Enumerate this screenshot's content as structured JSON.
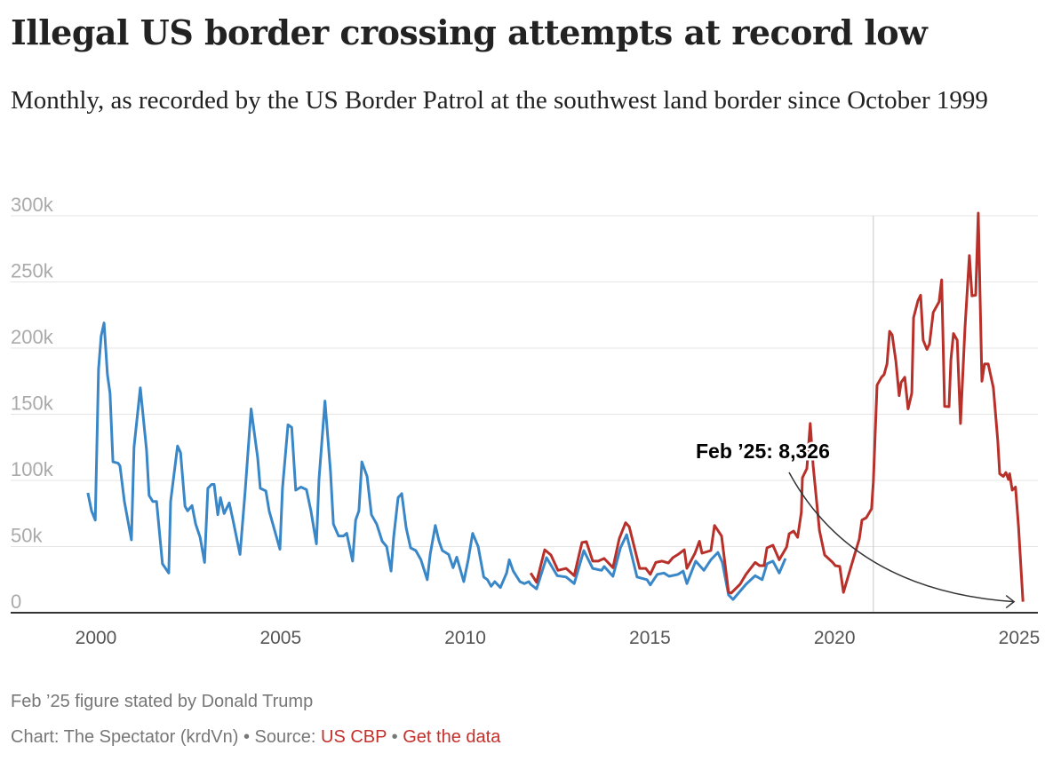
{
  "header": {
    "title": "Illegal US border crossing attempts at record low",
    "subtitle": "Monthly, as recorded by the US Border Patrol at the southwest land border since October 1999"
  },
  "footer": {
    "note": "Feb ’25 figure stated by Donald Trump",
    "credit": "Chart: The Spectator (krdVn)",
    "sep1": " • Source: ",
    "source_link": "US CBP",
    "sep2": " • ",
    "data_link": "Get the data"
  },
  "chart_data": {
    "type": "line",
    "title": "Illegal US border crossing attempts at record low",
    "xlabel": "",
    "ylabel": "",
    "xlim": [
      1999.75,
      2025.5
    ],
    "ylim": [
      0,
      300000
    ],
    "grid": true,
    "x_ticks": [
      "2000",
      "2005",
      "2010",
      "2015",
      "2020",
      "2025"
    ],
    "x_tick_values": [
      2000,
      2005,
      2010,
      2015,
      2020,
      2025
    ],
    "y_ticks": [
      "0",
      "50k",
      "100k",
      "150k",
      "200k",
      "250k",
      "300k"
    ],
    "y_tick_values": [
      0,
      50000,
      100000,
      150000,
      200000,
      250000,
      300000
    ],
    "reference_line_x": 2021.05,
    "colors": {
      "blue": "#3a87c8",
      "red": "#b8302a",
      "grid": "#e4e4e4",
      "axis": "#333333"
    },
    "annotation": {
      "text": "Feb ’25: 8,326",
      "points_to": [
        2025.1,
        8326
      ]
    },
    "series": [
      {
        "color": "#3a87c8",
        "points": [
          [
            1999.78,
            90600
          ],
          [
            1999.88,
            77000
          ],
          [
            1999.98,
            70000
          ],
          [
            2000.07,
            184000
          ],
          [
            2000.14,
            209000
          ],
          [
            2000.22,
            219000
          ],
          [
            2000.31,
            180000
          ],
          [
            2000.38,
            166000
          ],
          [
            2000.46,
            114000
          ],
          [
            2000.6,
            113000
          ],
          [
            2000.65,
            111000
          ],
          [
            2000.77,
            84000
          ],
          [
            2000.96,
            55000
          ],
          [
            2001.03,
            125000
          ],
          [
            2001.2,
            170000
          ],
          [
            2001.37,
            123000
          ],
          [
            2001.44,
            88600
          ],
          [
            2001.54,
            84000
          ],
          [
            2001.64,
            84000
          ],
          [
            2001.8,
            37000
          ],
          [
            2001.97,
            30000
          ],
          [
            2002.02,
            84000
          ],
          [
            2002.21,
            126000
          ],
          [
            2002.29,
            121000
          ],
          [
            2002.41,
            80500
          ],
          [
            2002.48,
            77000
          ],
          [
            2002.6,
            81000
          ],
          [
            2002.7,
            67000
          ],
          [
            2002.82,
            57000
          ],
          [
            2002.94,
            38000
          ],
          [
            2003.03,
            94000
          ],
          [
            2003.13,
            97000
          ],
          [
            2003.2,
            97000
          ],
          [
            2003.3,
            74000
          ],
          [
            2003.37,
            87000
          ],
          [
            2003.47,
            75000
          ],
          [
            2003.61,
            83000
          ],
          [
            2003.71,
            70000
          ],
          [
            2003.9,
            44000
          ],
          [
            2004.04,
            92000
          ],
          [
            2004.2,
            154000
          ],
          [
            2004.38,
            117000
          ],
          [
            2004.45,
            94000
          ],
          [
            2004.6,
            92000
          ],
          [
            2004.69,
            77000
          ],
          [
            2004.86,
            60000
          ],
          [
            2004.98,
            48000
          ],
          [
            2005.05,
            94000
          ],
          [
            2005.2,
            142000
          ],
          [
            2005.3,
            140000
          ],
          [
            2005.41,
            92600
          ],
          [
            2005.55,
            95000
          ],
          [
            2005.7,
            93000
          ],
          [
            2005.82,
            77000
          ],
          [
            2005.97,
            52000
          ],
          [
            2006.04,
            101000
          ],
          [
            2006.2,
            160000
          ],
          [
            2006.35,
            107000
          ],
          [
            2006.43,
            67000
          ],
          [
            2006.57,
            58000
          ],
          [
            2006.7,
            58000
          ],
          [
            2006.79,
            60000
          ],
          [
            2006.95,
            39000
          ],
          [
            2007.03,
            70000
          ],
          [
            2007.12,
            77000
          ],
          [
            2007.2,
            114000
          ],
          [
            2007.34,
            103000
          ],
          [
            2007.46,
            74000
          ],
          [
            2007.6,
            67000
          ],
          [
            2007.75,
            54000
          ],
          [
            2007.87,
            50000
          ],
          [
            2007.99,
            31500
          ],
          [
            2008.06,
            57000
          ],
          [
            2008.18,
            87000
          ],
          [
            2008.28,
            90000
          ],
          [
            2008.4,
            64000
          ],
          [
            2008.52,
            49000
          ],
          [
            2008.66,
            47000
          ],
          [
            2008.8,
            40000
          ],
          [
            2008.97,
            25000
          ],
          [
            2009.05,
            44000
          ],
          [
            2009.19,
            66000
          ],
          [
            2009.29,
            54000
          ],
          [
            2009.38,
            47000
          ],
          [
            2009.55,
            44000
          ],
          [
            2009.67,
            34000
          ],
          [
            2009.77,
            42000
          ],
          [
            2009.96,
            23500
          ],
          [
            2010.08,
            40000
          ],
          [
            2010.2,
            60000
          ],
          [
            2010.35,
            50000
          ],
          [
            2010.5,
            27000
          ],
          [
            2010.6,
            25000
          ],
          [
            2010.7,
            20000
          ],
          [
            2010.8,
            23500
          ],
          [
            2010.95,
            19000
          ],
          [
            2011.12,
            30000
          ],
          [
            2011.19,
            40000
          ],
          [
            2011.3,
            31500
          ],
          [
            2011.48,
            23500
          ],
          [
            2011.6,
            22000
          ],
          [
            2011.72,
            23500
          ],
          [
            2011.77,
            21500
          ],
          [
            2011.93,
            18000
          ],
          [
            2012.2,
            41600
          ],
          [
            2012.49,
            28000
          ],
          [
            2012.73,
            27000
          ],
          [
            2012.95,
            22000
          ],
          [
            2013.21,
            47000
          ],
          [
            2013.45,
            33500
          ],
          [
            2013.69,
            32000
          ],
          [
            2013.76,
            35000
          ],
          [
            2014.0,
            27500
          ],
          [
            2014.2,
            49000
          ],
          [
            2014.37,
            59000
          ],
          [
            2014.65,
            27000
          ],
          [
            2014.92,
            25000
          ],
          [
            2015.01,
            21000
          ],
          [
            2015.2,
            29000
          ],
          [
            2015.38,
            30000
          ],
          [
            2015.52,
            27500
          ],
          [
            2015.76,
            29000
          ],
          [
            2015.9,
            31500
          ],
          [
            2016.0,
            22000
          ],
          [
            2016.24,
            39000
          ],
          [
            2016.46,
            32000
          ],
          [
            2016.65,
            40000
          ],
          [
            2016.84,
            45600
          ],
          [
            2016.96,
            38000
          ],
          [
            2017.13,
            13400
          ],
          [
            2017.25,
            10000
          ],
          [
            2017.6,
            21500
          ],
          [
            2017.85,
            28000
          ],
          [
            2018.04,
            25000
          ],
          [
            2018.17,
            37000
          ],
          [
            2018.33,
            39000
          ],
          [
            2018.5,
            30000
          ],
          [
            2018.67,
            41000
          ]
        ]
      },
      {
        "color": "#b8302a",
        "points": [
          [
            2011.77,
            30000
          ],
          [
            2011.93,
            23000
          ],
          [
            2012.15,
            47600
          ],
          [
            2012.32,
            43600
          ],
          [
            2012.51,
            32000
          ],
          [
            2012.73,
            33500
          ],
          [
            2012.95,
            28000
          ],
          [
            2013.16,
            53000
          ],
          [
            2013.28,
            53700
          ],
          [
            2013.45,
            39000
          ],
          [
            2013.6,
            39000
          ],
          [
            2013.76,
            41000
          ],
          [
            2014.0,
            34000
          ],
          [
            2014.17,
            56000
          ],
          [
            2014.34,
            68000
          ],
          [
            2014.44,
            65000
          ],
          [
            2014.72,
            33500
          ],
          [
            2014.89,
            33500
          ],
          [
            2015.01,
            29000
          ],
          [
            2015.16,
            38000
          ],
          [
            2015.33,
            39000
          ],
          [
            2015.5,
            37600
          ],
          [
            2015.62,
            41600
          ],
          [
            2015.76,
            44000
          ],
          [
            2015.93,
            47600
          ],
          [
            2016.0,
            33500
          ],
          [
            2016.22,
            45000
          ],
          [
            2016.34,
            54000
          ],
          [
            2016.41,
            45000
          ],
          [
            2016.65,
            47000
          ],
          [
            2016.75,
            66000
          ],
          [
            2016.94,
            58000
          ],
          [
            2017.13,
            15400
          ],
          [
            2017.2,
            14800
          ],
          [
            2017.44,
            21500
          ],
          [
            2017.6,
            29000
          ],
          [
            2017.85,
            38000
          ],
          [
            2017.97,
            35600
          ],
          [
            2018.09,
            35600
          ],
          [
            2018.17,
            49000
          ],
          [
            2018.33,
            51000
          ],
          [
            2018.5,
            40000
          ],
          [
            2018.7,
            49600
          ],
          [
            2018.77,
            59700
          ],
          [
            2018.89,
            61700
          ],
          [
            2019.0,
            57000
          ],
          [
            2019.1,
            76000
          ],
          [
            2019.13,
            102000
          ],
          [
            2019.25,
            109000
          ],
          [
            2019.34,
            143000
          ],
          [
            2019.42,
            111000
          ],
          [
            2019.59,
            62000
          ],
          [
            2019.73,
            43600
          ],
          [
            2019.95,
            38000
          ],
          [
            2020.02,
            35600
          ],
          [
            2020.14,
            35000
          ],
          [
            2020.24,
            15400
          ],
          [
            2020.5,
            40000
          ],
          [
            2020.67,
            55700
          ],
          [
            2020.74,
            70000
          ],
          [
            2020.86,
            71800
          ],
          [
            2021.0,
            78500
          ],
          [
            2021.05,
            98600
          ],
          [
            2021.15,
            172000
          ],
          [
            2021.27,
            178000
          ],
          [
            2021.34,
            180000
          ],
          [
            2021.42,
            188000
          ],
          [
            2021.49,
            212700
          ],
          [
            2021.56,
            210000
          ],
          [
            2021.66,
            190000
          ],
          [
            2021.75,
            164000
          ],
          [
            2021.8,
            174000
          ],
          [
            2021.9,
            178000
          ],
          [
            2021.99,
            154000
          ],
          [
            2022.09,
            166000
          ],
          [
            2022.14,
            223000
          ],
          [
            2022.26,
            236000
          ],
          [
            2022.33,
            240000
          ],
          [
            2022.4,
            206000
          ],
          [
            2022.5,
            199000
          ],
          [
            2022.57,
            203000
          ],
          [
            2022.67,
            227000
          ],
          [
            2022.83,
            235000
          ],
          [
            2022.9,
            251600
          ],
          [
            2022.98,
            156000
          ],
          [
            2023.1,
            155700
          ],
          [
            2023.15,
            191000
          ],
          [
            2023.22,
            211000
          ],
          [
            2023.32,
            206000
          ],
          [
            2023.41,
            143000
          ],
          [
            2023.53,
            214700
          ],
          [
            2023.65,
            270000
          ],
          [
            2023.72,
            239500
          ],
          [
            2023.82,
            240000
          ],
          [
            2023.89,
            302000
          ],
          [
            2023.99,
            175000
          ],
          [
            2024.06,
            188000
          ],
          [
            2024.16,
            188000
          ],
          [
            2024.3,
            170000
          ],
          [
            2024.42,
            129500
          ],
          [
            2024.47,
            105000
          ],
          [
            2024.57,
            103000
          ],
          [
            2024.64,
            106000
          ],
          [
            2024.71,
            100700
          ],
          [
            2024.74,
            105000
          ],
          [
            2024.81,
            92600
          ],
          [
            2024.9,
            95000
          ],
          [
            2024.98,
            65000
          ],
          [
            2025.1,
            8326
          ]
        ]
      }
    ]
  }
}
